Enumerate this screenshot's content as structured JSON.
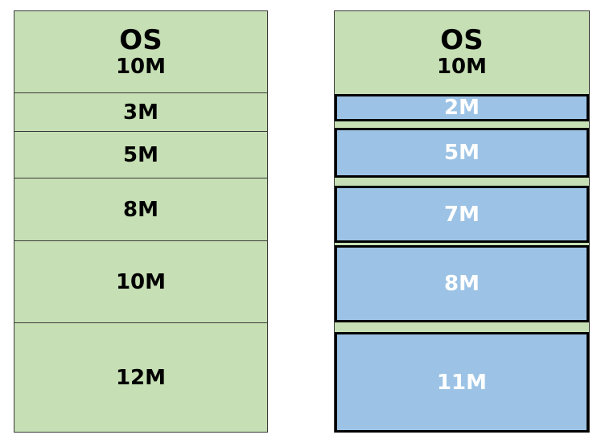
{
  "left_memory": {
    "os": {
      "title": "OS",
      "size": "10M"
    },
    "partitions": [
      "3M",
      "5M",
      "8M",
      "10M",
      "12M"
    ]
  },
  "right_memory": {
    "os": {
      "title": "OS",
      "size": "10M"
    },
    "blocks": [
      "2M",
      "5M",
      "7M",
      "8M",
      "11M"
    ]
  },
  "colors": {
    "partition_fill": "#c6dfb4",
    "allocated_fill": "#9cc3e5",
    "allocated_border": "#000000",
    "allocated_text": "#ffffff"
  }
}
